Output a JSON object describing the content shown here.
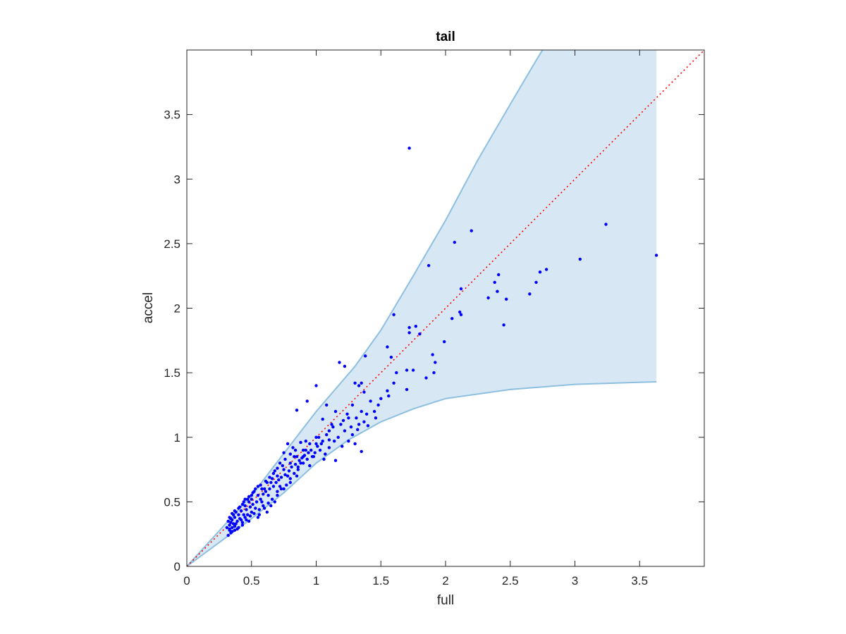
{
  "chart_data": {
    "type": "scatter",
    "title": "tail",
    "xlabel": "full",
    "ylabel": "accel",
    "xlim": [
      0,
      4
    ],
    "ylim": [
      0,
      4
    ],
    "xticks": [
      0,
      0.5,
      1,
      1.5,
      2,
      2.5,
      3,
      3.5
    ],
    "yticks": [
      0,
      0.5,
      1,
      1.5,
      2,
      2.5,
      3,
      3.5
    ],
    "xtick_labels": [
      "0",
      "0.5",
      "1",
      "1.5",
      "2",
      "2.5",
      "3",
      "3.5"
    ],
    "ytick_labels": [
      "0",
      "0.5",
      "1",
      "1.5",
      "2",
      "2.5",
      "3",
      "3.5"
    ],
    "grid": false,
    "colors": {
      "points": "#0000ff",
      "band_fill": "#d7e8f4",
      "band_edge": "#8dbfe0",
      "reference": "#ff0000"
    },
    "reference_line": {
      "style": "dotted",
      "x": [
        0,
        4
      ],
      "y": [
        0,
        4
      ]
    },
    "band": {
      "upper": [
        [
          0,
          0
        ],
        [
          0.5,
          0.55
        ],
        [
          1,
          1.2
        ],
        [
          1.3,
          1.55
        ],
        [
          1.5,
          1.83
        ],
        [
          1.75,
          2.25
        ],
        [
          2,
          2.68
        ],
        [
          2.25,
          3.15
        ],
        [
          2.5,
          3.58
        ],
        [
          2.7,
          3.92
        ],
        [
          2.75,
          4.0
        ],
        [
          3.63,
          4.0
        ]
      ],
      "lower": [
        [
          0,
          0
        ],
        [
          0.5,
          0.37
        ],
        [
          0.75,
          0.57
        ],
        [
          1,
          0.8
        ],
        [
          1.25,
          0.98
        ],
        [
          1.5,
          1.12
        ],
        [
          1.75,
          1.22
        ],
        [
          2,
          1.3
        ],
        [
          2.5,
          1.37
        ],
        [
          3,
          1.41
        ],
        [
          3.63,
          1.43
        ]
      ]
    },
    "points": [
      [
        1.72,
        3.24
      ],
      [
        2.2,
        2.6
      ],
      [
        2.07,
        2.51
      ],
      [
        3.24,
        2.65
      ],
      [
        3.63,
        2.41
      ],
      [
        3.04,
        2.38
      ],
      [
        2.78,
        2.3
      ],
      [
        2.73,
        2.28
      ],
      [
        2.7,
        2.2
      ],
      [
        2.65,
        2.11
      ],
      [
        2.41,
        2.26
      ],
      [
        2.38,
        2.2
      ],
      [
        2.4,
        2.13
      ],
      [
        2.47,
        2.07
      ],
      [
        2.33,
        2.08
      ],
      [
        2.45,
        1.87
      ],
      [
        1.87,
        2.33
      ],
      [
        2.12,
        2.15
      ],
      [
        2.12,
        1.95
      ],
      [
        2.11,
        1.97
      ],
      [
        2.05,
        1.92
      ],
      [
        1.99,
        1.74
      ],
      [
        1.6,
        1.95
      ],
      [
        1.72,
        1.85
      ],
      [
        1.72,
        1.81
      ],
      [
        1.77,
        1.86
      ],
      [
        1.8,
        1.8
      ],
      [
        1.9,
        1.64
      ],
      [
        1.92,
        1.58
      ],
      [
        1.91,
        1.5
      ],
      [
        1.85,
        1.46
      ],
      [
        1.75,
        1.52
      ],
      [
        1.7,
        1.52
      ],
      [
        1.7,
        1.37
      ],
      [
        1.62,
        1.5
      ],
      [
        1.55,
        1.7
      ],
      [
        1.58,
        1.62
      ],
      [
        1.6,
        1.42
      ],
      [
        1.56,
        1.32
      ],
      [
        1.55,
        1.36
      ],
      [
        1.5,
        1.3
      ],
      [
        1.48,
        1.25
      ],
      [
        1.45,
        1.2
      ],
      [
        1.38,
        1.63
      ],
      [
        1.22,
        1.55
      ],
      [
        1.18,
        1.58
      ],
      [
        1.33,
        1.4
      ],
      [
        1.35,
        1.42
      ],
      [
        1.3,
        1.42
      ],
      [
        1.37,
        1.35
      ],
      [
        1.35,
        1.2
      ],
      [
        1.33,
        1.1
      ],
      [
        1.3,
        0.95
      ],
      [
        1.35,
        0.89
      ],
      [
        1.28,
        1.25
      ],
      [
        1.25,
        1.15
      ],
      [
        1.22,
        1.05
      ],
      [
        1.15,
        1.2
      ],
      [
        1.12,
        1.1
      ],
      [
        1.05,
        1.14
      ],
      [
        1.08,
        1.25
      ],
      [
        1.0,
        1.4
      ],
      [
        1.02,
        1.0
      ],
      [
        0.93,
        1.28
      ],
      [
        0.85,
        1.21
      ],
      [
        1.1,
        0.92
      ],
      [
        1.07,
        0.87
      ],
      [
        1.15,
        0.82
      ],
      [
        1.0,
        0.95
      ],
      [
        0.98,
        0.85
      ],
      [
        0.95,
        0.78
      ],
      [
        0.92,
        0.9
      ],
      [
        0.9,
        0.85
      ],
      [
        0.88,
        0.8
      ],
      [
        0.86,
        0.75
      ],
      [
        0.83,
        0.85
      ],
      [
        0.85,
        0.7
      ],
      [
        0.8,
        0.65
      ],
      [
        0.78,
        0.7
      ],
      [
        0.75,
        0.6
      ],
      [
        0.72,
        0.62
      ],
      [
        0.7,
        0.55
      ],
      [
        0.68,
        0.5
      ],
      [
        0.65,
        0.47
      ],
      [
        0.63,
        0.55
      ],
      [
        0.62,
        0.42
      ],
      [
        0.6,
        0.45
      ],
      [
        0.58,
        0.5
      ],
      [
        0.56,
        0.4
      ],
      [
        0.55,
        0.38
      ],
      [
        0.53,
        0.45
      ],
      [
        0.5,
        0.42
      ],
      [
        0.48,
        0.35
      ],
      [
        0.47,
        0.4
      ],
      [
        0.45,
        0.38
      ],
      [
        0.43,
        0.32
      ],
      [
        0.42,
        0.36
      ],
      [
        0.4,
        0.3
      ],
      [
        0.38,
        0.33
      ],
      [
        0.37,
        0.28
      ],
      [
        0.35,
        0.3
      ],
      [
        0.34,
        0.26
      ],
      [
        0.33,
        0.28
      ],
      [
        0.32,
        0.24
      ],
      [
        0.33,
        0.32
      ],
      [
        0.35,
        0.36
      ],
      [
        0.37,
        0.38
      ],
      [
        0.4,
        0.4
      ],
      [
        0.42,
        0.43
      ],
      [
        0.45,
        0.47
      ],
      [
        0.48,
        0.5
      ],
      [
        0.5,
        0.52
      ],
      [
        0.55,
        0.55
      ],
      [
        0.6,
        0.6
      ],
      [
        0.65,
        0.65
      ],
      [
        0.7,
        0.7
      ],
      [
        0.75,
        0.75
      ],
      [
        0.8,
        0.8
      ],
      [
        0.85,
        0.85
      ],
      [
        0.9,
        0.9
      ],
      [
        0.95,
        0.95
      ],
      [
        1.0,
        1.0
      ],
      [
        0.78,
        0.95
      ],
      [
        0.82,
        0.92
      ],
      [
        0.75,
        0.88
      ],
      [
        0.72,
        0.8
      ],
      [
        0.68,
        0.74
      ],
      [
        0.66,
        0.68
      ],
      [
        0.62,
        0.65
      ],
      [
        0.58,
        0.6
      ],
      [
        0.55,
        0.62
      ],
      [
        0.52,
        0.58
      ],
      [
        0.5,
        0.55
      ],
      [
        0.47,
        0.52
      ],
      [
        0.44,
        0.5
      ],
      [
        0.41,
        0.46
      ],
      [
        0.38,
        0.42
      ],
      [
        0.36,
        0.4
      ],
      [
        0.34,
        0.37
      ],
      [
        0.32,
        0.35
      ],
      [
        0.34,
        0.34
      ],
      [
        0.36,
        0.33
      ],
      [
        0.39,
        0.35
      ],
      [
        0.41,
        0.37
      ],
      [
        0.44,
        0.4
      ],
      [
        0.46,
        0.44
      ],
      [
        0.49,
        0.46
      ],
      [
        0.51,
        0.48
      ],
      [
        0.54,
        0.5
      ],
      [
        0.57,
        0.52
      ],
      [
        0.59,
        0.56
      ],
      [
        0.61,
        0.58
      ],
      [
        0.64,
        0.6
      ],
      [
        0.67,
        0.62
      ],
      [
        0.69,
        0.65
      ],
      [
        0.71,
        0.67
      ],
      [
        0.73,
        0.69
      ],
      [
        0.76,
        0.71
      ],
      [
        0.79,
        0.74
      ],
      [
        0.81,
        0.77
      ],
      [
        0.84,
        0.79
      ],
      [
        0.87,
        0.82
      ],
      [
        0.89,
        0.84
      ],
      [
        0.91,
        0.86
      ],
      [
        0.94,
        0.88
      ],
      [
        0.96,
        0.9
      ],
      [
        0.99,
        0.88
      ],
      [
        1.03,
        0.9
      ],
      [
        1.05,
        0.97
      ],
      [
        1.08,
        1.02
      ],
      [
        1.1,
        1.05
      ],
      [
        1.13,
        1.08
      ],
      [
        1.17,
        1.0
      ],
      [
        1.19,
        1.1
      ],
      [
        1.21,
        1.13
      ],
      [
        1.24,
        1.18
      ],
      [
        1.27,
        1.08
      ],
      [
        1.31,
        1.15
      ],
      [
        1.39,
        1.18
      ],
      [
        1.42,
        1.28
      ],
      [
        0.31,
        0.3
      ],
      [
        0.33,
        0.29
      ],
      [
        0.35,
        0.27
      ],
      [
        0.37,
        0.31
      ],
      [
        0.39,
        0.29
      ],
      [
        0.43,
        0.34
      ],
      [
        0.46,
        0.36
      ],
      [
        0.49,
        0.39
      ],
      [
        0.52,
        0.41
      ],
      [
        0.56,
        0.44
      ],
      [
        0.59,
        0.47
      ],
      [
        0.63,
        0.49
      ],
      [
        0.66,
        0.52
      ],
      [
        0.7,
        0.58
      ],
      [
        0.73,
        0.6
      ],
      [
        0.77,
        0.63
      ],
      [
        0.8,
        0.68
      ],
      [
        0.83,
        0.72
      ],
      [
        0.86,
        0.77
      ],
      [
        0.9,
        0.8
      ],
      [
        0.93,
        0.83
      ],
      [
        0.97,
        0.85
      ],
      [
        1.01,
        0.93
      ],
      [
        1.04,
        0.95
      ],
      [
        0.92,
        0.97
      ],
      [
        0.88,
        0.96
      ],
      [
        0.84,
        0.9
      ],
      [
        0.8,
        0.87
      ],
      [
        0.76,
        0.83
      ],
      [
        0.74,
        0.78
      ],
      [
        0.7,
        0.76
      ],
      [
        0.67,
        0.72
      ],
      [
        0.64,
        0.69
      ],
      [
        0.61,
        0.66
      ],
      [
        0.57,
        0.63
      ],
      [
        0.53,
        0.6
      ],
      [
        0.51,
        0.57
      ],
      [
        0.48,
        0.54
      ],
      [
        0.45,
        0.52
      ],
      [
        0.43,
        0.48
      ],
      [
        0.4,
        0.45
      ],
      [
        0.37,
        0.43
      ],
      [
        0.35,
        0.41
      ],
      [
        0.33,
        0.38
      ],
      [
        1.06,
        0.83
      ],
      [
        1.1,
        0.98
      ],
      [
        1.14,
        0.97
      ],
      [
        1.2,
        0.93
      ],
      [
        1.25,
        0.97
      ],
      [
        1.28,
        1.02
      ],
      [
        1.32,
        1.06
      ],
      [
        1.37,
        1.12
      ],
      [
        1.4,
        1.09
      ],
      [
        1.46,
        1.15
      ]
    ]
  }
}
